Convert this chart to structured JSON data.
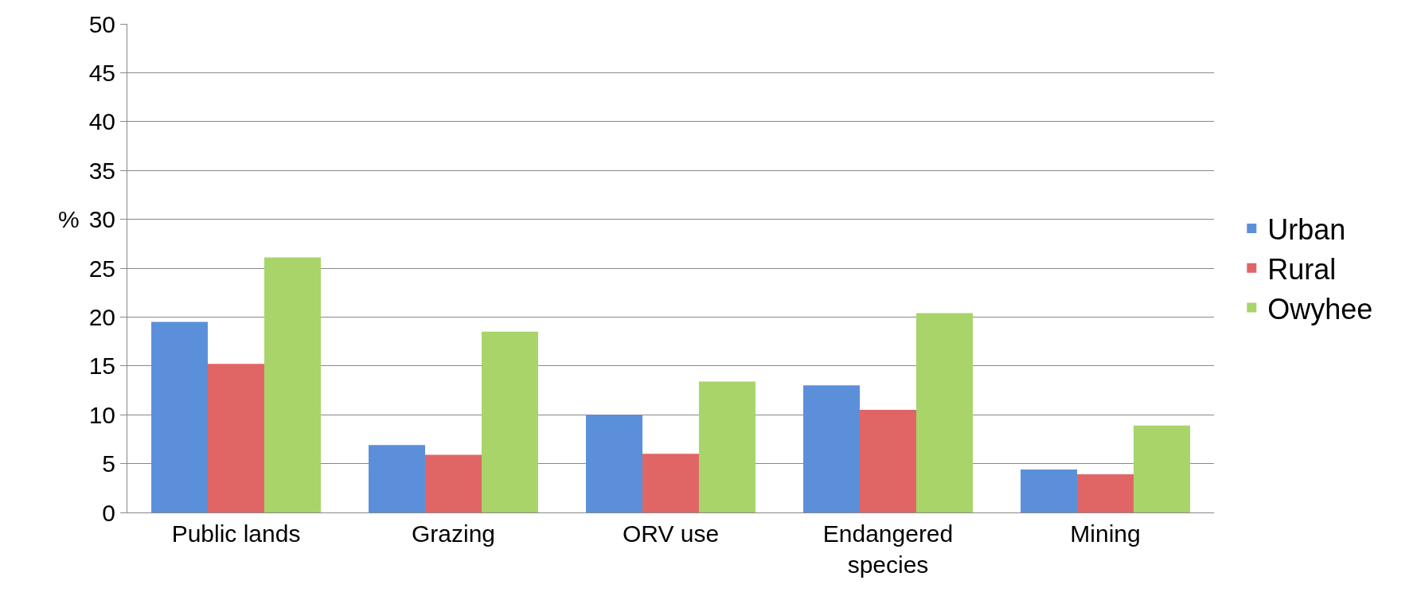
{
  "chart_data": {
    "type": "bar",
    "ylabel": "%",
    "categories": [
      "Public lands",
      "Grazing",
      "ORV use",
      "Endangered species",
      "Mining"
    ],
    "series": [
      {
        "name": "Urban",
        "color": "#5b8fd9",
        "values": [
          19.5,
          6.9,
          10.0,
          13.0,
          4.4
        ]
      },
      {
        "name": "Rural",
        "color": "#e06666",
        "values": [
          15.2,
          5.9,
          6.0,
          10.5,
          3.9
        ]
      },
      {
        "name": "Owyhee",
        "color": "#a8d46a",
        "values": [
          26.1,
          18.5,
          13.4,
          20.4,
          8.9
        ]
      }
    ],
    "ylim": [
      0,
      50
    ],
    "yticks": [
      0,
      5,
      10,
      15,
      20,
      25,
      30,
      35,
      40,
      45,
      50
    ],
    "grid": "y",
    "legend": "right"
  }
}
